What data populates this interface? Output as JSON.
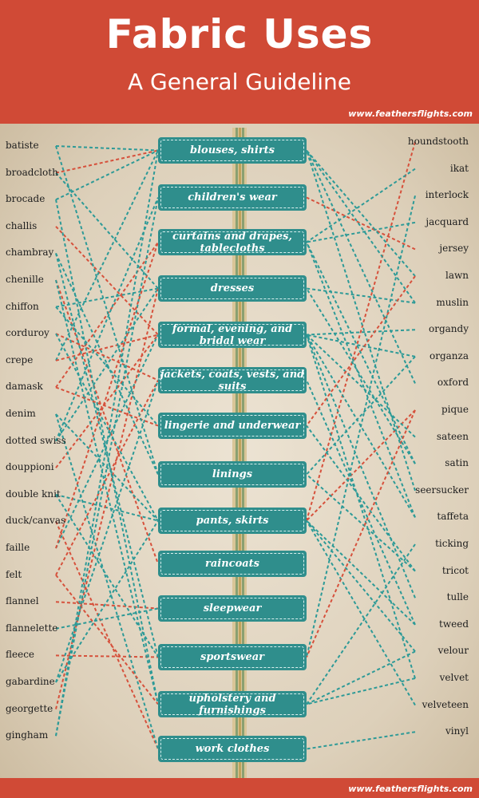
{
  "header": {
    "title": "Fabric Uses",
    "subtitle": "A General Guideline",
    "url": "www.feathersflights.com"
  },
  "footer": {
    "url": "www.feathersflights.com"
  },
  "colors": {
    "header_bg": "#d04a36",
    "use_box": "#2f8e8c",
    "line_teal": "#2d9a97",
    "line_red": "#d6513c"
  },
  "uses": [
    "blouses, shirts",
    "children's wear",
    "curtains and drapes, tablecloths",
    "dresses",
    "formal, evening, and bridal wear",
    "jackets, coats, vests, and suits",
    "lingerie and underwear",
    "linings",
    "pants, skirts",
    "raincoats",
    "sleepwear",
    "sportswear",
    "upholstery and furnishings",
    "work clothes"
  ],
  "fabrics_left": [
    "batiste",
    "broadcloth",
    "brocade",
    "challis",
    "chambray",
    "chenille",
    "chiffon",
    "corduroy",
    "crepe",
    "damask",
    "denim",
    "dotted swiss",
    "douppioni",
    "double knit",
    "duck/canvas",
    "faille",
    "felt",
    "flannel",
    "flannelette",
    "fleece",
    "gabardine",
    "georgette",
    "gingham"
  ],
  "fabrics_right": [
    "houndstooth",
    "ikat",
    "interlock",
    "jacquard",
    "jersey",
    "lawn",
    "muslin",
    "organdy",
    "organza",
    "oxford",
    "pique",
    "sateen",
    "satin",
    "seersucker",
    "taffeta",
    "ticking",
    "tricot",
    "tulle",
    "tweed",
    "velour",
    "velvet",
    "velveteen",
    "vinyl"
  ]
}
